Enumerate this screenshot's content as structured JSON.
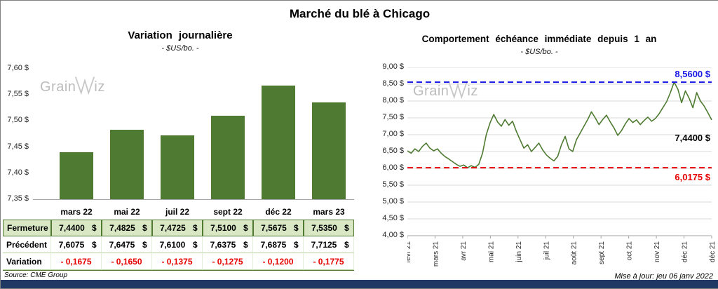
{
  "page": {
    "title": "Marché du blé à Chicago",
    "source": "Source: CME Group",
    "updated": "Mise à jour: jeu 06 janv 2022",
    "watermark": {
      "full": "GrainWiz",
      "part1": "Grain",
      "part2": "iz"
    },
    "footer_bar_color": "#1f3864"
  },
  "colors": {
    "green": "#4e7b31",
    "light_green_row": "#d9e7c5",
    "blue": "#1616e6",
    "red": "#e60000",
    "navy": "#1f3864",
    "gridline": "#d9d9d9"
  },
  "chart_data": [
    {
      "type": "bar",
      "title": "Variation journalière",
      "subtitle": "- $US/bo. -",
      "categories": [
        "mars 22",
        "mai 22",
        "juil 22",
        "sept 22",
        "déc 22",
        "mars 23"
      ],
      "values": [
        7.44,
        7.4825,
        7.4725,
        7.51,
        7.5675,
        7.535
      ],
      "ylim": [
        7.35,
        7.6
      ],
      "ytick_labels": [
        "7,60 $",
        "7,55 $",
        "7,50 $",
        "7,45 $",
        "7,40 $",
        "7,35 $"
      ],
      "bar_color": "#4e7b31",
      "grid": false,
      "legend": false
    },
    {
      "type": "line",
      "title": "Comportement échéance immédiate depuis 1 an",
      "subtitle": "- $US/bo. -",
      "x_labels": [
        "févr 21",
        "mars 21",
        "avr 21",
        "mai 21",
        "juin 21",
        "juil 21",
        "août 21",
        "sept 21",
        "oct 21",
        "nov 21",
        "déc 21",
        "déc 21"
      ],
      "values": [
        6.52,
        6.45,
        6.58,
        6.5,
        6.65,
        6.75,
        6.6,
        6.52,
        6.58,
        6.45,
        6.35,
        6.28,
        6.2,
        6.12,
        6.06,
        6.1,
        6.0175,
        6.08,
        6.03,
        6.12,
        6.45,
        7.0,
        7.35,
        7.6,
        7.38,
        7.25,
        7.45,
        7.28,
        7.4,
        7.1,
        6.85,
        6.6,
        6.7,
        6.5,
        6.62,
        6.75,
        6.55,
        6.4,
        6.3,
        6.22,
        6.35,
        6.7,
        6.95,
        6.58,
        6.5,
        6.85,
        7.05,
        7.25,
        7.45,
        7.68,
        7.5,
        7.3,
        7.45,
        7.58,
        7.38,
        7.2,
        6.98,
        7.12,
        7.32,
        7.48,
        7.36,
        7.44,
        7.3,
        7.42,
        7.52,
        7.4,
        7.48,
        7.62,
        7.8,
        7.98,
        8.25,
        8.56,
        8.35,
        7.95,
        8.3,
        8.08,
        7.8,
        8.25,
        8.0,
        7.85,
        7.65,
        7.44
      ],
      "ylim": [
        4.0,
        9.0
      ],
      "ytick_labels": [
        "9,00 $",
        "8,50 $",
        "8,00 $",
        "7,50 $",
        "7,00 $",
        "6,50 $",
        "6,00 $",
        "5,50 $",
        "5,00 $",
        "4,50 $",
        "4,00 $"
      ],
      "line_color": "#4e7b31",
      "grid": true,
      "legend": false,
      "annotations": {
        "high_line": {
          "value": 8.56,
          "label": "8,5600 $",
          "color": "#1616e6"
        },
        "low_line": {
          "value": 6.0175,
          "label": "6,0175 $",
          "color": "#e60000"
        },
        "last_value": {
          "value": 7.44,
          "label": "7,4400 $",
          "color": "#000000"
        }
      }
    }
  ],
  "table": {
    "headers": [
      "mars 22",
      "mai 22",
      "juil 22",
      "sept 22",
      "déc 22",
      "mars 23"
    ],
    "rows": [
      {
        "label": "Fermeture",
        "style": "green",
        "values": [
          "7,4400 $",
          "7,4825 $",
          "7,4725 $",
          "7,5100 $",
          "7,5675 $",
          "7,5350 $"
        ]
      },
      {
        "label": "Précédent",
        "style": "plain",
        "values": [
          "7,6075 $",
          "7,6475 $",
          "7,6100 $",
          "7,6375 $",
          "7,6875 $",
          "7,7125 $"
        ]
      },
      {
        "label": "Variation",
        "style": "red",
        "values": [
          "- 0,1675",
          "- 0,1650",
          "- 0,1375",
          "- 0,1275",
          "- 0,1200",
          "- 0,1775"
        ]
      }
    ]
  }
}
